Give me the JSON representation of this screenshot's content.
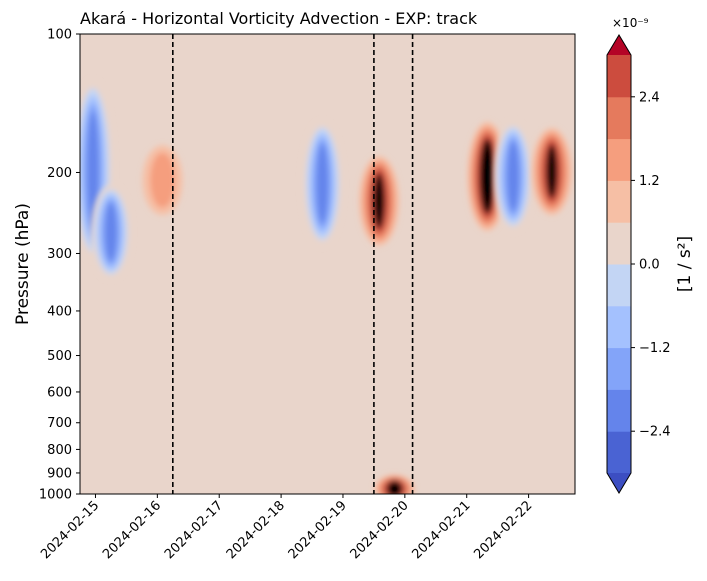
{
  "chart_data": {
    "type": "heatmap",
    "subtype": "filled-contour",
    "title": "Akará - Horizontal Vorticity Advection - EXP: track",
    "xlabel": "",
    "ylabel": "Pressure (hPa)",
    "x_ticks": [
      "2024-02-15",
      "2024-02-16",
      "2024-02-17",
      "2024-02-18",
      "2024-02-19",
      "2024-02-20",
      "2024-02-21",
      "2024-02-22"
    ],
    "x_range": [
      "2024-02-14T18:00",
      "2024-02-22T18:00"
    ],
    "y_scale": "log",
    "y_inverted": true,
    "y_ticks": [
      100,
      200,
      300,
      400,
      500,
      600,
      700,
      800,
      900,
      1000
    ],
    "y_range": [
      100,
      1000
    ],
    "vertical_dashed_lines": [
      "2024-02-16T06:00",
      "2024-02-19T12:00",
      "2024-02-20T03:00"
    ],
    "colorbar": {
      "label": "[1 / s²]",
      "multiplier": "×10⁻⁹",
      "scale_exponent": -9,
      "levels": [
        -3.0,
        -2.5,
        -2.0,
        -1.5,
        -1.0,
        -0.5,
        0.0,
        0.5,
        1.0,
        1.5,
        2.0,
        2.5,
        3.0
      ],
      "tick_values": [
        -2.4,
        -1.2,
        0.0,
        1.2,
        2.4
      ],
      "tick_labels": [
        "−2.4",
        "−1.2",
        "0.0",
        "1.2",
        "2.4"
      ],
      "extend": "both",
      "colormap": "coolwarm",
      "colors": [
        "#4a63d3",
        "#6484eb",
        "#83a4f9",
        "#a4c1fe",
        "#c3d5f4",
        "#e9d5cb",
        "#f6bfa5",
        "#f59e7e",
        "#e57a5d",
        "#cc4c3e"
      ],
      "under_color": "#3c4ec2",
      "over_color": "#b40426"
    },
    "features": [
      {
        "date": "2024-02-14T23:00",
        "pressure_hpa": [
          130,
          300
        ],
        "value": -2.6
      },
      {
        "date": "2024-02-15T06:00",
        "pressure_hpa": [
          220,
          330
        ],
        "value": -2.3
      },
      {
        "date": "2024-02-16T02:00",
        "pressure_hpa": [
          180,
          240
        ],
        "value": 1.0
      },
      {
        "date": "2024-02-18T16:00",
        "pressure_hpa": [
          160,
          280
        ],
        "value": -2.6
      },
      {
        "date": "2024-02-19T14:00",
        "pressure_hpa": [
          190,
          280
        ],
        "value": 2.6
      },
      {
        "date": "2024-02-21T08:00",
        "pressure_hpa": [
          160,
          260
        ],
        "value": 2.9
      },
      {
        "date": "2024-02-21T18:00",
        "pressure_hpa": [
          160,
          260
        ],
        "value": -2.5
      },
      {
        "date": "2024-02-22T09:00",
        "pressure_hpa": [
          165,
          240
        ],
        "value": 2.7
      },
      {
        "date": "2024-02-19T20:00",
        "pressure_hpa": [
          950,
          1000
        ],
        "value": 3.0
      }
    ]
  }
}
